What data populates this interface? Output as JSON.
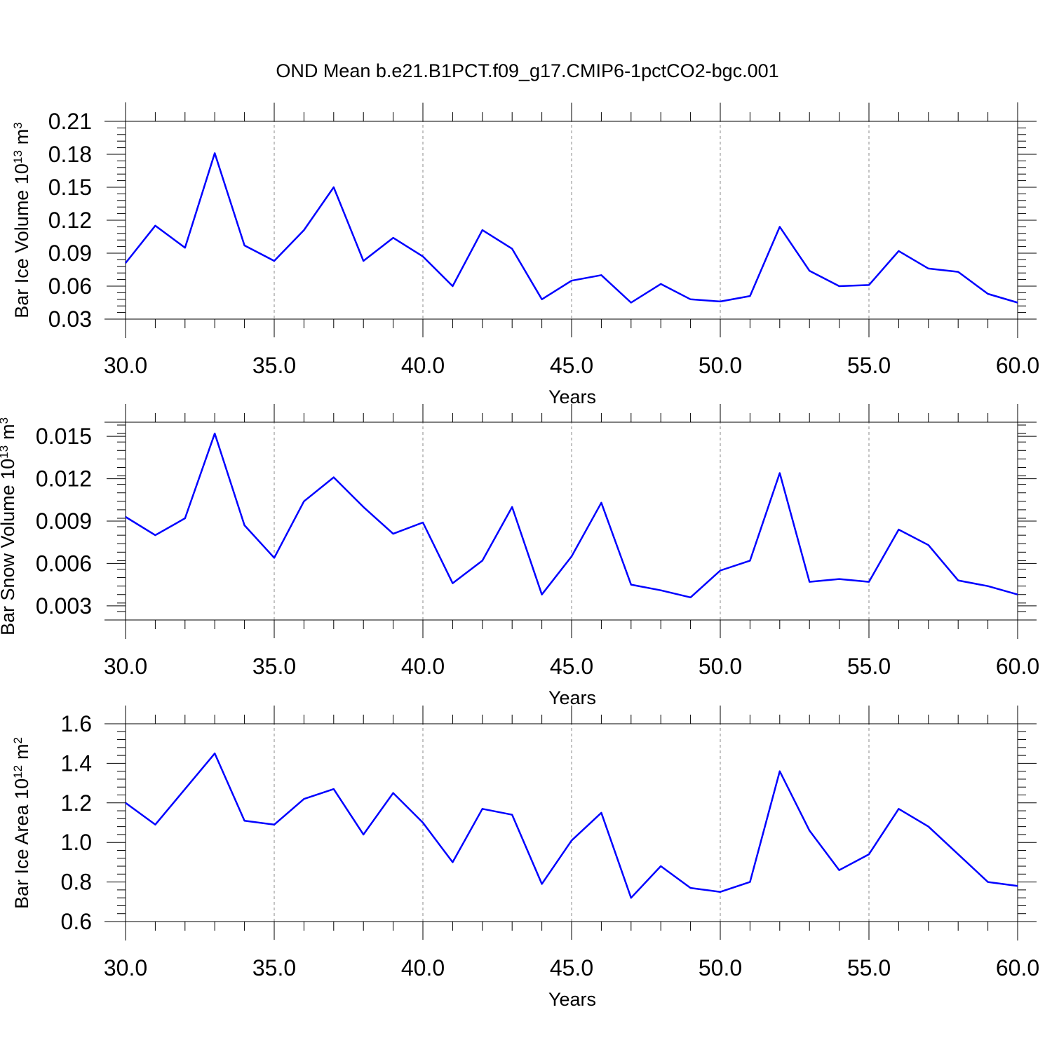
{
  "figure": {
    "title": "OND Mean b.e21.B1PCT.f09_g17.CMIP6-1pctCO2-bgc.001",
    "line_color": "#0000ff"
  },
  "chart_data": [
    {
      "type": "line",
      "xlabel": "Years",
      "ylabel": "Bar Ice Volume 10",
      "ylabel_unit": "m",
      "ylabel_exp": "13",
      "ylabel_unit_exp": "3",
      "xlim": [
        30,
        60
      ],
      "ylim": [
        0.03,
        0.21
      ],
      "xticks": [
        "30.0",
        "35.0",
        "40.0",
        "45.0",
        "50.0",
        "55.0",
        "60.0"
      ],
      "yticks": [
        "0.03",
        "0.06",
        "0.09",
        "0.12",
        "0.15",
        "0.18",
        "0.21"
      ],
      "x": [
        30,
        31,
        32,
        33,
        34,
        35,
        36,
        37,
        38,
        39,
        40,
        41,
        42,
        43,
        44,
        45,
        46,
        47,
        48,
        49,
        50,
        51,
        52,
        53,
        54,
        55,
        56,
        57,
        58,
        59,
        60
      ],
      "series": [
        {
          "values": [
            0.081,
            0.115,
            0.095,
            0.181,
            0.097,
            0.083,
            0.111,
            0.15,
            0.083,
            0.104,
            0.087,
            0.06,
            0.111,
            0.094,
            0.048,
            0.065,
            0.07,
            0.045,
            0.062,
            0.048,
            0.046,
            0.051,
            0.114,
            0.074,
            0.06,
            0.061,
            0.092,
            0.076,
            0.073,
            0.053,
            0.045
          ]
        }
      ]
    },
    {
      "type": "line",
      "xlabel": "Years",
      "ylabel": "Bar Snow Volume 10",
      "ylabel_unit": "m",
      "ylabel_exp": "13",
      "ylabel_unit_exp": "3",
      "xlim": [
        30,
        60
      ],
      "ylim": [
        0.002,
        0.016
      ],
      "xticks": [
        "30.0",
        "35.0",
        "40.0",
        "45.0",
        "50.0",
        "55.0",
        "60.0"
      ],
      "yticks": [
        "0.003",
        "0.006",
        "0.009",
        "0.012",
        "0.015"
      ],
      "x": [
        30,
        31,
        32,
        33,
        34,
        35,
        36,
        37,
        38,
        39,
        40,
        41,
        42,
        43,
        44,
        45,
        46,
        47,
        48,
        49,
        50,
        51,
        52,
        53,
        54,
        55,
        56,
        57,
        58,
        59,
        60
      ],
      "series": [
        {
          "values": [
            0.0093,
            0.008,
            0.0092,
            0.0152,
            0.0087,
            0.0064,
            0.0104,
            0.0121,
            0.01,
            0.0081,
            0.0089,
            0.0046,
            0.0062,
            0.01,
            0.0038,
            0.0065,
            0.0103,
            0.0045,
            0.0041,
            0.0036,
            0.0055,
            0.0062,
            0.0124,
            0.0047,
            0.0049,
            0.0047,
            0.0084,
            0.0073,
            0.0048,
            0.0044,
            0.0038
          ]
        }
      ]
    },
    {
      "type": "line",
      "xlabel": "Years",
      "ylabel": "Bar Ice Area 10",
      "ylabel_unit": "m",
      "ylabel_exp": "12",
      "ylabel_unit_exp": "2",
      "xlim": [
        30,
        60
      ],
      "ylim": [
        0.6,
        1.6
      ],
      "xticks": [
        "30.0",
        "35.0",
        "40.0",
        "45.0",
        "50.0",
        "55.0",
        "60.0"
      ],
      "yticks": [
        "0.6",
        "0.8",
        "1.0",
        "1.2",
        "1.4",
        "1.6"
      ],
      "x": [
        30,
        31,
        32,
        33,
        34,
        35,
        36,
        37,
        38,
        39,
        40,
        41,
        42,
        43,
        44,
        45,
        46,
        47,
        48,
        49,
        50,
        51,
        52,
        53,
        54,
        55,
        56,
        57,
        58,
        59,
        60
      ],
      "series": [
        {
          "values": [
            1.2,
            1.09,
            1.27,
            1.45,
            1.11,
            1.09,
            1.22,
            1.27,
            1.04,
            1.25,
            1.1,
            0.9,
            1.17,
            1.14,
            0.79,
            1.01,
            1.15,
            0.72,
            0.88,
            0.77,
            0.75,
            0.8,
            1.36,
            1.06,
            0.86,
            0.94,
            1.17,
            1.08,
            0.94,
            0.8,
            0.78
          ]
        }
      ]
    }
  ]
}
